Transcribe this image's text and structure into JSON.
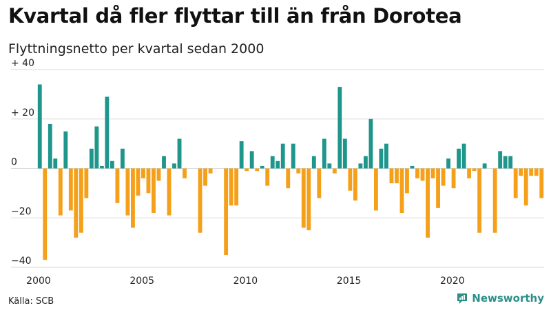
{
  "title": "Kvartal då fler flyttar till än från Dorotea",
  "subtitle": "Flyttningsnetto per kvartal sedan 2000",
  "source": "Källa: SCB",
  "brand": "Newsworthy",
  "colors": {
    "positive": "#1f968b",
    "negative": "#f5a01a",
    "grid": "#d9d9d9",
    "text": "#222222"
  },
  "chart_data": {
    "type": "bar",
    "title": "",
    "xlabel": "",
    "ylabel": "",
    "start_year": 2000,
    "ylim": [
      -40,
      40
    ],
    "yticks": [
      -40,
      -20,
      0,
      20,
      40
    ],
    "ytick_labels": [
      "−40",
      "−20",
      "0",
      "+ 20",
      "+ 40"
    ],
    "xticks": [
      2000,
      2005,
      2010,
      2015,
      2020
    ],
    "grid": true,
    "legend": "none",
    "values": [
      34,
      -37,
      18,
      4,
      -19,
      15,
      -17,
      -28,
      -26,
      -12,
      8,
      17,
      1,
      29,
      3,
      -14,
      8,
      -19,
      -24,
      -11,
      -4,
      -10,
      -18,
      -5,
      5,
      -19,
      2,
      12,
      -4,
      0,
      0,
      -26,
      -7,
      -2,
      0,
      0,
      -35,
      -15,
      -15,
      11,
      -1,
      7,
      -1,
      1,
      -7,
      5,
      3,
      10,
      -8,
      10,
      -2,
      -24,
      -25,
      5,
      -12,
      12,
      2,
      -2,
      33,
      12,
      -9,
      -13,
      2,
      5,
      20,
      -17,
      8,
      10,
      -6,
      -6,
      -18,
      -10,
      1,
      -4,
      -5,
      -28,
      -4,
      -16,
      -7,
      4,
      -8,
      8,
      10,
      -4,
      -1,
      -26,
      2,
      0,
      -26,
      7,
      5,
      5,
      -12,
      -3,
      -15,
      -3,
      -3,
      -12
    ]
  }
}
